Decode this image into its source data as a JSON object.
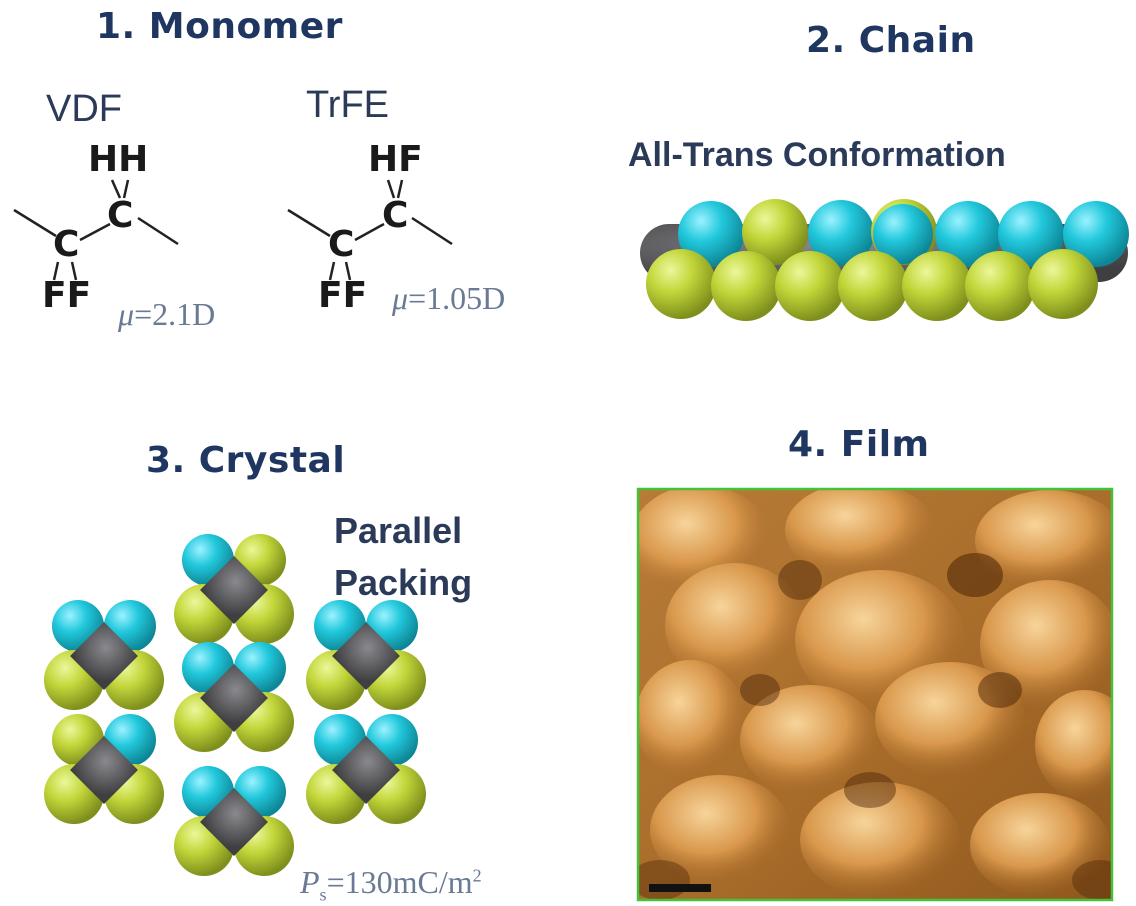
{
  "panels": {
    "monomer": {
      "title": "1. Monomer",
      "vdf": {
        "name": "VDF",
        "top_atoms": "HH",
        "bottom_atoms": "FF",
        "mu_symbol": "μ",
        "mu_value": "=2.1D"
      },
      "trfe": {
        "name": "TrFE",
        "top_atoms": "HF",
        "bottom_atoms": "FF",
        "mu_symbol": "μ",
        "mu_value": "=1.05D"
      },
      "carbon_label": "C"
    },
    "chain": {
      "title": "2. Chain",
      "subtitle": "All-Trans Conformation"
    },
    "crystal": {
      "title": "3. Crystal",
      "packing_line1": "Parallel",
      "packing_line2": "Packing",
      "ps_symbol": "P",
      "ps_sub": "s",
      "ps_value": "=130mC/m",
      "ps_exp": "2"
    },
    "film": {
      "title": "4. Film"
    }
  },
  "colors": {
    "title": "#1f3760",
    "hydrogen_cyan": "#22c8dc",
    "fluorine_yellow": "#c2d63a",
    "carbon_gray": "#5a5a5e",
    "film_border": "#46c23a",
    "film_base": "#c98a3e"
  }
}
